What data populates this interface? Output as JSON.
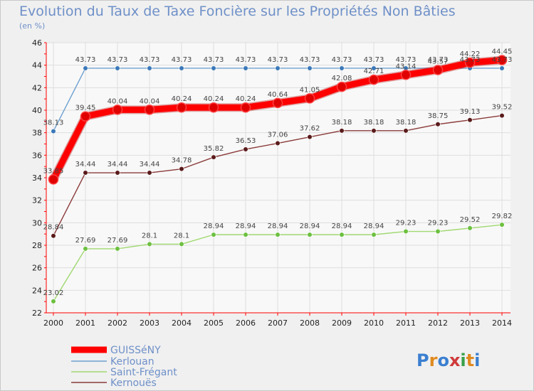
{
  "chart_data": {
    "type": "line",
    "title": "Evolution du Taux de Taxe Foncière sur les Propriétés Non Bâties",
    "subtitle": "(en %)",
    "xlabel": "",
    "ylabel": "",
    "ylim": [
      22,
      46
    ],
    "yticks": [
      22,
      24,
      26,
      28,
      30,
      32,
      34,
      36,
      38,
      40,
      42,
      44,
      46
    ],
    "x": [
      "2000",
      "2001",
      "2002",
      "2003",
      "2004",
      "2005",
      "2006",
      "2007",
      "2008",
      "2009",
      "2010",
      "2011",
      "2012",
      "2013",
      "2014"
    ],
    "grid": true,
    "series": [
      {
        "name": "GUISSéNY",
        "color": "#ff0000",
        "values": [
          33.85,
          39.45,
          40.04,
          40.04,
          40.24,
          40.24,
          40.24,
          40.64,
          41.05,
          42.08,
          42.71,
          43.14,
          43.57,
          44.22,
          44.45
        ],
        "labels": [
          "33.85",
          "39.45",
          "40.04",
          "40.04",
          "40.24",
          "40.24",
          "40.24",
          "40.64",
          "41.05",
          "42.08",
          "42.71",
          "43.14",
          "43.57",
          "44.22",
          "44.45"
        ]
      },
      {
        "name": "Kerlouan",
        "color": "#6ea0d0",
        "values": [
          38.13,
          43.73,
          43.73,
          43.73,
          43.73,
          43.73,
          43.73,
          43.73,
          43.73,
          43.73,
          43.73,
          43.73,
          43.73,
          43.73,
          43.73
        ],
        "labels": [
          "38.13",
          "43.73",
          "43.73",
          "43.73",
          "43.73",
          "43.73",
          "43.73",
          "43.73",
          "43.73",
          "43.73",
          "43.73",
          "43.73",
          "43.73",
          "43.73",
          "43.73"
        ]
      },
      {
        "name": "Saint-Frégant",
        "color": "#a0d870",
        "values": [
          23.02,
          27.69,
          27.69,
          28.1,
          28.1,
          28.94,
          28.94,
          28.94,
          28.94,
          28.94,
          28.94,
          29.23,
          29.23,
          29.52,
          29.82
        ],
        "labels": [
          "23.02",
          "27.69",
          "27.69",
          "28.1",
          "28.1",
          "28.94",
          "28.94",
          "28.94",
          "28.94",
          "28.94",
          "28.94",
          "29.23",
          "29.23",
          "29.52",
          "29.82"
        ]
      },
      {
        "name": "Kernouës",
        "color": "#8b3a3a",
        "values": [
          28.84,
          34.44,
          34.44,
          34.44,
          34.78,
          35.82,
          36.53,
          37.06,
          37.62,
          38.18,
          38.18,
          38.18,
          38.75,
          39.13,
          39.52
        ],
        "labels": [
          "28.84",
          "34.44",
          "34.44",
          "34.44",
          "34.78",
          "35.82",
          "36.53",
          "37.06",
          "37.62",
          "38.18",
          "38.18",
          "38.18",
          "38.75",
          "39.13",
          "39.52"
        ]
      }
    ]
  },
  "legend": {
    "items": [
      "GUISSéNY",
      "Kerlouan",
      "Saint-Frégant",
      "Kernouës"
    ]
  },
  "brand": {
    "logo_text": "Proxiti",
    "letters": [
      "P",
      "r",
      "o",
      "x",
      "i",
      "t",
      "i"
    ],
    "letter_colors": [
      "#3a7fd0",
      "#e08a20",
      "#3a7fd0",
      "#d03a3a",
      "#3aa04a",
      "#e08a20",
      "#3a7fd0"
    ]
  }
}
